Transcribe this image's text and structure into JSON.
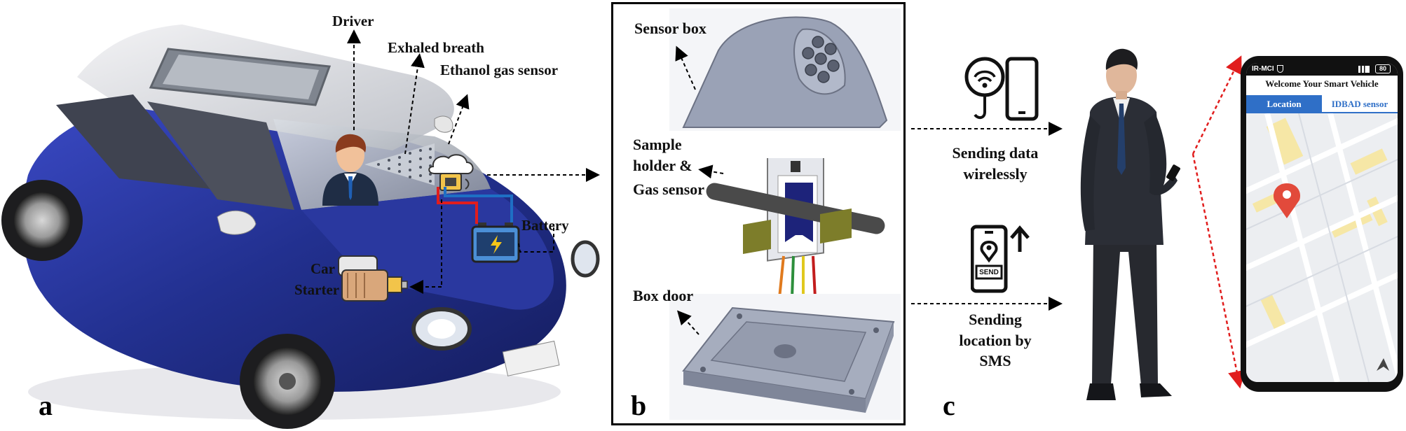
{
  "panels": {
    "a": {
      "letter": "a",
      "labels": {
        "driver": "Driver",
        "breath": "Exhaled breath",
        "sensor": "Ethanol gas sensor",
        "battery": "Battery",
        "car_line1": "Car",
        "car_line2": "Starter"
      }
    },
    "b": {
      "letter": "b",
      "labels": {
        "sensor_box": "Sensor box",
        "holder_l1": "Sample",
        "holder_l2": "holder &",
        "holder_l3": "Gas sensor",
        "box_door": "Box door"
      }
    },
    "c": {
      "letter": "c",
      "labels": {
        "wireless_l1": "Sending data",
        "wireless_l2": "wirelessly",
        "sms_l1": "Sending",
        "sms_l2": "location by",
        "sms_l3": "SMS",
        "send": "SEND"
      }
    }
  },
  "phone": {
    "carrier": "IR-MCI",
    "battery": "80",
    "title": "Welcome Your Smart Vehicle",
    "tabs": [
      "Location",
      "IDBAD sensor"
    ]
  },
  "colors": {
    "car_blue": "#27339a",
    "accent_red": "#e11d1d",
    "tab_blue": "#2f6fc7",
    "map_yellow": "#f6e7a6"
  }
}
